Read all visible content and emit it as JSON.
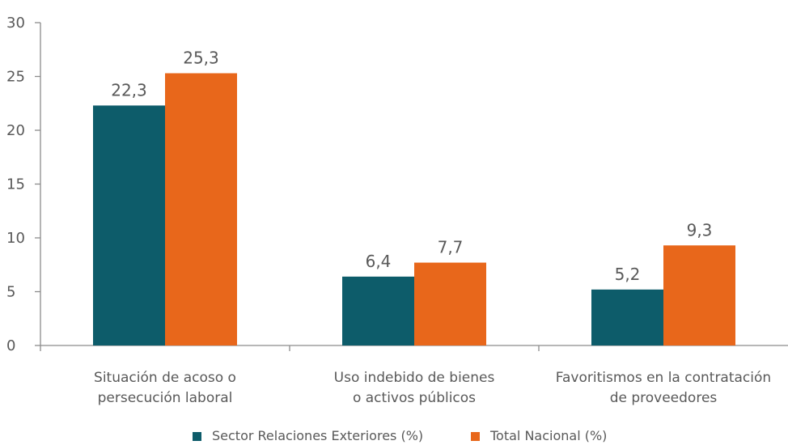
{
  "chart_data": {
    "type": "bar",
    "title": "",
    "xlabel": "",
    "ylabel": "",
    "ylim": [
      0,
      30
    ],
    "yticks": [
      0,
      5,
      10,
      15,
      20,
      25,
      30
    ],
    "grid": false,
    "legend_position": "bottom",
    "categories": [
      [
        "Situación de acoso o",
        "persecución laboral"
      ],
      [
        "Uso indebido de bienes",
        "o activos públicos"
      ],
      [
        "Favoritismos en la contratación",
        "de proveedores"
      ]
    ],
    "series": [
      {
        "name": "Sector Relaciones Exteriores (%)",
        "color": "#0d5c6a",
        "values": [
          22.3,
          6.4,
          5.2
        ],
        "labels": [
          "22,3",
          "6,4",
          "5,2"
        ]
      },
      {
        "name": "Total Nacional (%)",
        "color": "#e8671b",
        "values": [
          25.3,
          7.7,
          9.3
        ],
        "labels": [
          "25,3",
          "7,7",
          "9,3"
        ]
      }
    ]
  }
}
